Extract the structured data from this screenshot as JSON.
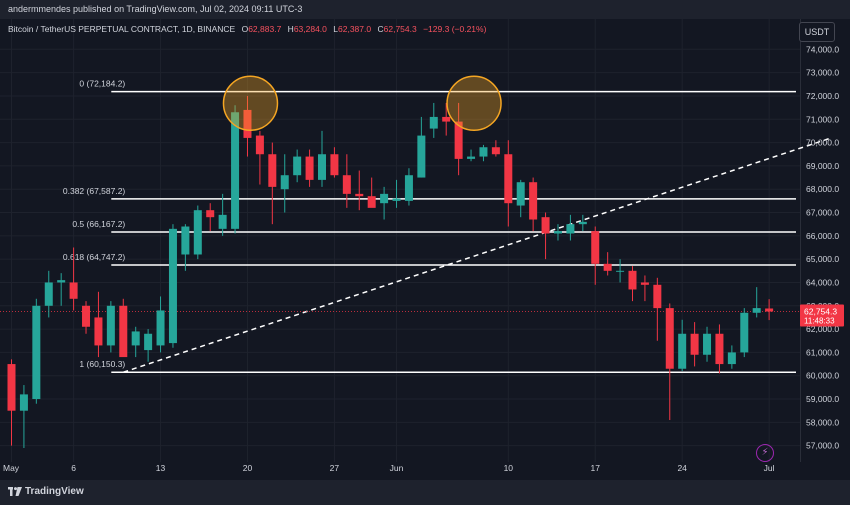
{
  "header": {
    "published": "andermmendes published on TradingView.com, Jul 02, 2024 09:11 UTC-3",
    "currency": "USDT"
  },
  "symbol": {
    "name": "Bitcoin / TetherUS PERPETUAL CONTRACT, 1D, BINANCE",
    "o_label": "O",
    "o": "62,883.7",
    "h_label": "H",
    "h": "63,284.0",
    "l_label": "L",
    "l": "62,387.0",
    "c_label": "C",
    "c": "62,754.3",
    "change": "−129.3 (−0.21%)"
  },
  "footer": {
    "logo_text": "TradingView"
  },
  "colors": {
    "up": "#26a69a",
    "down": "#f23645",
    "background": "#131722",
    "fib_line": "#ffffff",
    "circle": "#f5a623",
    "trendline": "#ffffff"
  },
  "chart_data": {
    "type": "candlestick",
    "y_axis_ticks": [
      "57,000.0",
      "58,000.0",
      "59,000.0",
      "60,000.0",
      "61,000.0",
      "62,000.0",
      "63,000.0",
      "64,000.0",
      "65,000.0",
      "66,000.0",
      "67,000.0",
      "68,000.0",
      "69,000.0",
      "70,000.0",
      "71,000.0",
      "72,000.0",
      "73,000.0",
      "74,000.0"
    ],
    "y_tick_values": [
      57000,
      58000,
      59000,
      60000,
      61000,
      62000,
      63000,
      64000,
      65000,
      66000,
      67000,
      68000,
      69000,
      70000,
      71000,
      72000,
      73000,
      74000
    ],
    "ylim": [
      56300,
      75300
    ],
    "x_axis_labels": [
      {
        "label": "May",
        "index": 0
      },
      {
        "label": "6",
        "index": 5
      },
      {
        "label": "13",
        "index": 12
      },
      {
        "label": "20",
        "index": 19
      },
      {
        "label": "27",
        "index": 26
      },
      {
        "label": "Jun",
        "index": 31
      },
      {
        "label": "10",
        "index": 40
      },
      {
        "label": "17",
        "index": 47
      },
      {
        "label": "24",
        "index": 54
      },
      {
        "label": "Jul",
        "index": 61
      }
    ],
    "candles": [
      {
        "o": 60500,
        "h": 60700,
        "l": 57000,
        "c": 58500
      },
      {
        "o": 58500,
        "h": 59600,
        "l": 56900,
        "c": 59200
      },
      {
        "o": 59000,
        "h": 63300,
        "l": 58800,
        "c": 63000
      },
      {
        "o": 63000,
        "h": 64500,
        "l": 62500,
        "c": 64000
      },
      {
        "o": 64000,
        "h": 64400,
        "l": 63000,
        "c": 64100
      },
      {
        "o": 64000,
        "h": 65500,
        "l": 62800,
        "c": 63300
      },
      {
        "o": 63000,
        "h": 63200,
        "l": 61800,
        "c": 62100
      },
      {
        "o": 62500,
        "h": 63600,
        "l": 60800,
        "c": 61300
      },
      {
        "o": 61300,
        "h": 63200,
        "l": 61000,
        "c": 63000
      },
      {
        "o": 63000,
        "h": 63300,
        "l": 60900,
        "c": 60800
      },
      {
        "o": 61300,
        "h": 62100,
        "l": 60800,
        "c": 61900
      },
      {
        "o": 61100,
        "h": 62000,
        "l": 60600,
        "c": 61800
      },
      {
        "o": 61300,
        "h": 63400,
        "l": 61000,
        "c": 62800
      },
      {
        "o": 61400,
        "h": 66500,
        "l": 61200,
        "c": 66300
      },
      {
        "o": 65200,
        "h": 66500,
        "l": 64500,
        "c": 66400
      },
      {
        "o": 65200,
        "h": 67300,
        "l": 65000,
        "c": 67100
      },
      {
        "o": 67100,
        "h": 67400,
        "l": 66200,
        "c": 66800
      },
      {
        "o": 66300,
        "h": 67800,
        "l": 66000,
        "c": 66900
      },
      {
        "o": 66300,
        "h": 71600,
        "l": 66100,
        "c": 71300
      },
      {
        "o": 71400,
        "h": 72000,
        "l": 69400,
        "c": 70200
      },
      {
        "o": 70300,
        "h": 70500,
        "l": 68200,
        "c": 69500
      },
      {
        "o": 69500,
        "h": 70000,
        "l": 66500,
        "c": 68100
      },
      {
        "o": 68000,
        "h": 69500,
        "l": 67000,
        "c": 68600
      },
      {
        "o": 68600,
        "h": 69700,
        "l": 68300,
        "c": 69400
      },
      {
        "o": 69400,
        "h": 69700,
        "l": 68100,
        "c": 68400
      },
      {
        "o": 68400,
        "h": 70500,
        "l": 68100,
        "c": 69500
      },
      {
        "o": 69500,
        "h": 69800,
        "l": 68500,
        "c": 68600
      },
      {
        "o": 68600,
        "h": 69500,
        "l": 67200,
        "c": 67800
      },
      {
        "o": 67800,
        "h": 68800,
        "l": 67100,
        "c": 67700
      },
      {
        "o": 67700,
        "h": 68500,
        "l": 67300,
        "c": 67200
      },
      {
        "o": 67400,
        "h": 68100,
        "l": 66700,
        "c": 67800
      },
      {
        "o": 67500,
        "h": 68400,
        "l": 67200,
        "c": 67600
      },
      {
        "o": 67500,
        "h": 68900,
        "l": 67300,
        "c": 68600
      },
      {
        "o": 68500,
        "h": 71100,
        "l": 68500,
        "c": 70300
      },
      {
        "o": 70600,
        "h": 71700,
        "l": 70200,
        "c": 71100
      },
      {
        "o": 71100,
        "h": 71700,
        "l": 70300,
        "c": 70900
      },
      {
        "o": 70900,
        "h": 71700,
        "l": 68600,
        "c": 69300
      },
      {
        "o": 69300,
        "h": 69700,
        "l": 69200,
        "c": 69400
      },
      {
        "o": 69400,
        "h": 69900,
        "l": 69200,
        "c": 69800
      },
      {
        "o": 69800,
        "h": 70100,
        "l": 69400,
        "c": 69500
      },
      {
        "o": 69500,
        "h": 70100,
        "l": 66400,
        "c": 67400
      },
      {
        "o": 67300,
        "h": 68400,
        "l": 66800,
        "c": 68300
      },
      {
        "o": 68300,
        "h": 68500,
        "l": 66200,
        "c": 66700
      },
      {
        "o": 66800,
        "h": 67000,
        "l": 65000,
        "c": 66100
      },
      {
        "o": 66100,
        "h": 66500,
        "l": 65800,
        "c": 66200
      },
      {
        "o": 66100,
        "h": 66900,
        "l": 65800,
        "c": 66500
      },
      {
        "o": 66500,
        "h": 66900,
        "l": 66200,
        "c": 66600
      },
      {
        "o": 66200,
        "h": 66400,
        "l": 63900,
        "c": 64800
      },
      {
        "o": 64800,
        "h": 65300,
        "l": 64300,
        "c": 64500
      },
      {
        "o": 64500,
        "h": 65000,
        "l": 64000,
        "c": 64500
      },
      {
        "o": 64500,
        "h": 64700,
        "l": 63200,
        "c": 63700
      },
      {
        "o": 64000,
        "h": 64300,
        "l": 63200,
        "c": 63900
      },
      {
        "o": 63900,
        "h": 64200,
        "l": 61500,
        "c": 62900
      },
      {
        "o": 62900,
        "h": 63100,
        "l": 58100,
        "c": 60300
      },
      {
        "o": 60300,
        "h": 62400,
        "l": 60200,
        "c": 61800
      },
      {
        "o": 61800,
        "h": 62300,
        "l": 60400,
        "c": 60900
      },
      {
        "o": 60900,
        "h": 62100,
        "l": 60600,
        "c": 61800
      },
      {
        "o": 61800,
        "h": 62200,
        "l": 60100,
        "c": 60500
      },
      {
        "o": 60500,
        "h": 61300,
        "l": 60300,
        "c": 61000
      },
      {
        "o": 61000,
        "h": 62900,
        "l": 60800,
        "c": 62700
      },
      {
        "o": 62700,
        "h": 63800,
        "l": 62500,
        "c": 62900
      },
      {
        "o": 62883.7,
        "h": 63284.0,
        "l": 62387.0,
        "c": 62754.3
      }
    ],
    "fib_levels": [
      {
        "label": "0 (72,184.2)",
        "value": 72184.2
      },
      {
        "label": "0.382 (67,587.2)",
        "value": 67587.2
      },
      {
        "label": "0.5 (66,167.2)",
        "value": 66167.2
      },
      {
        "label": "0.618 (64,747.2)",
        "value": 64747.2
      },
      {
        "label": "1 (60,150.3)",
        "value": 60150.3
      }
    ],
    "trendline": {
      "start_index": 9,
      "start_value": 60150,
      "end_index": 66,
      "end_value": 70200
    },
    "circles": [
      {
        "index": 19,
        "value": 71600
      },
      {
        "index": 37,
        "value": 71600
      }
    ],
    "last_price": {
      "value": 62754.3,
      "label": "62,754.3",
      "timer": "11:48:33"
    }
  }
}
